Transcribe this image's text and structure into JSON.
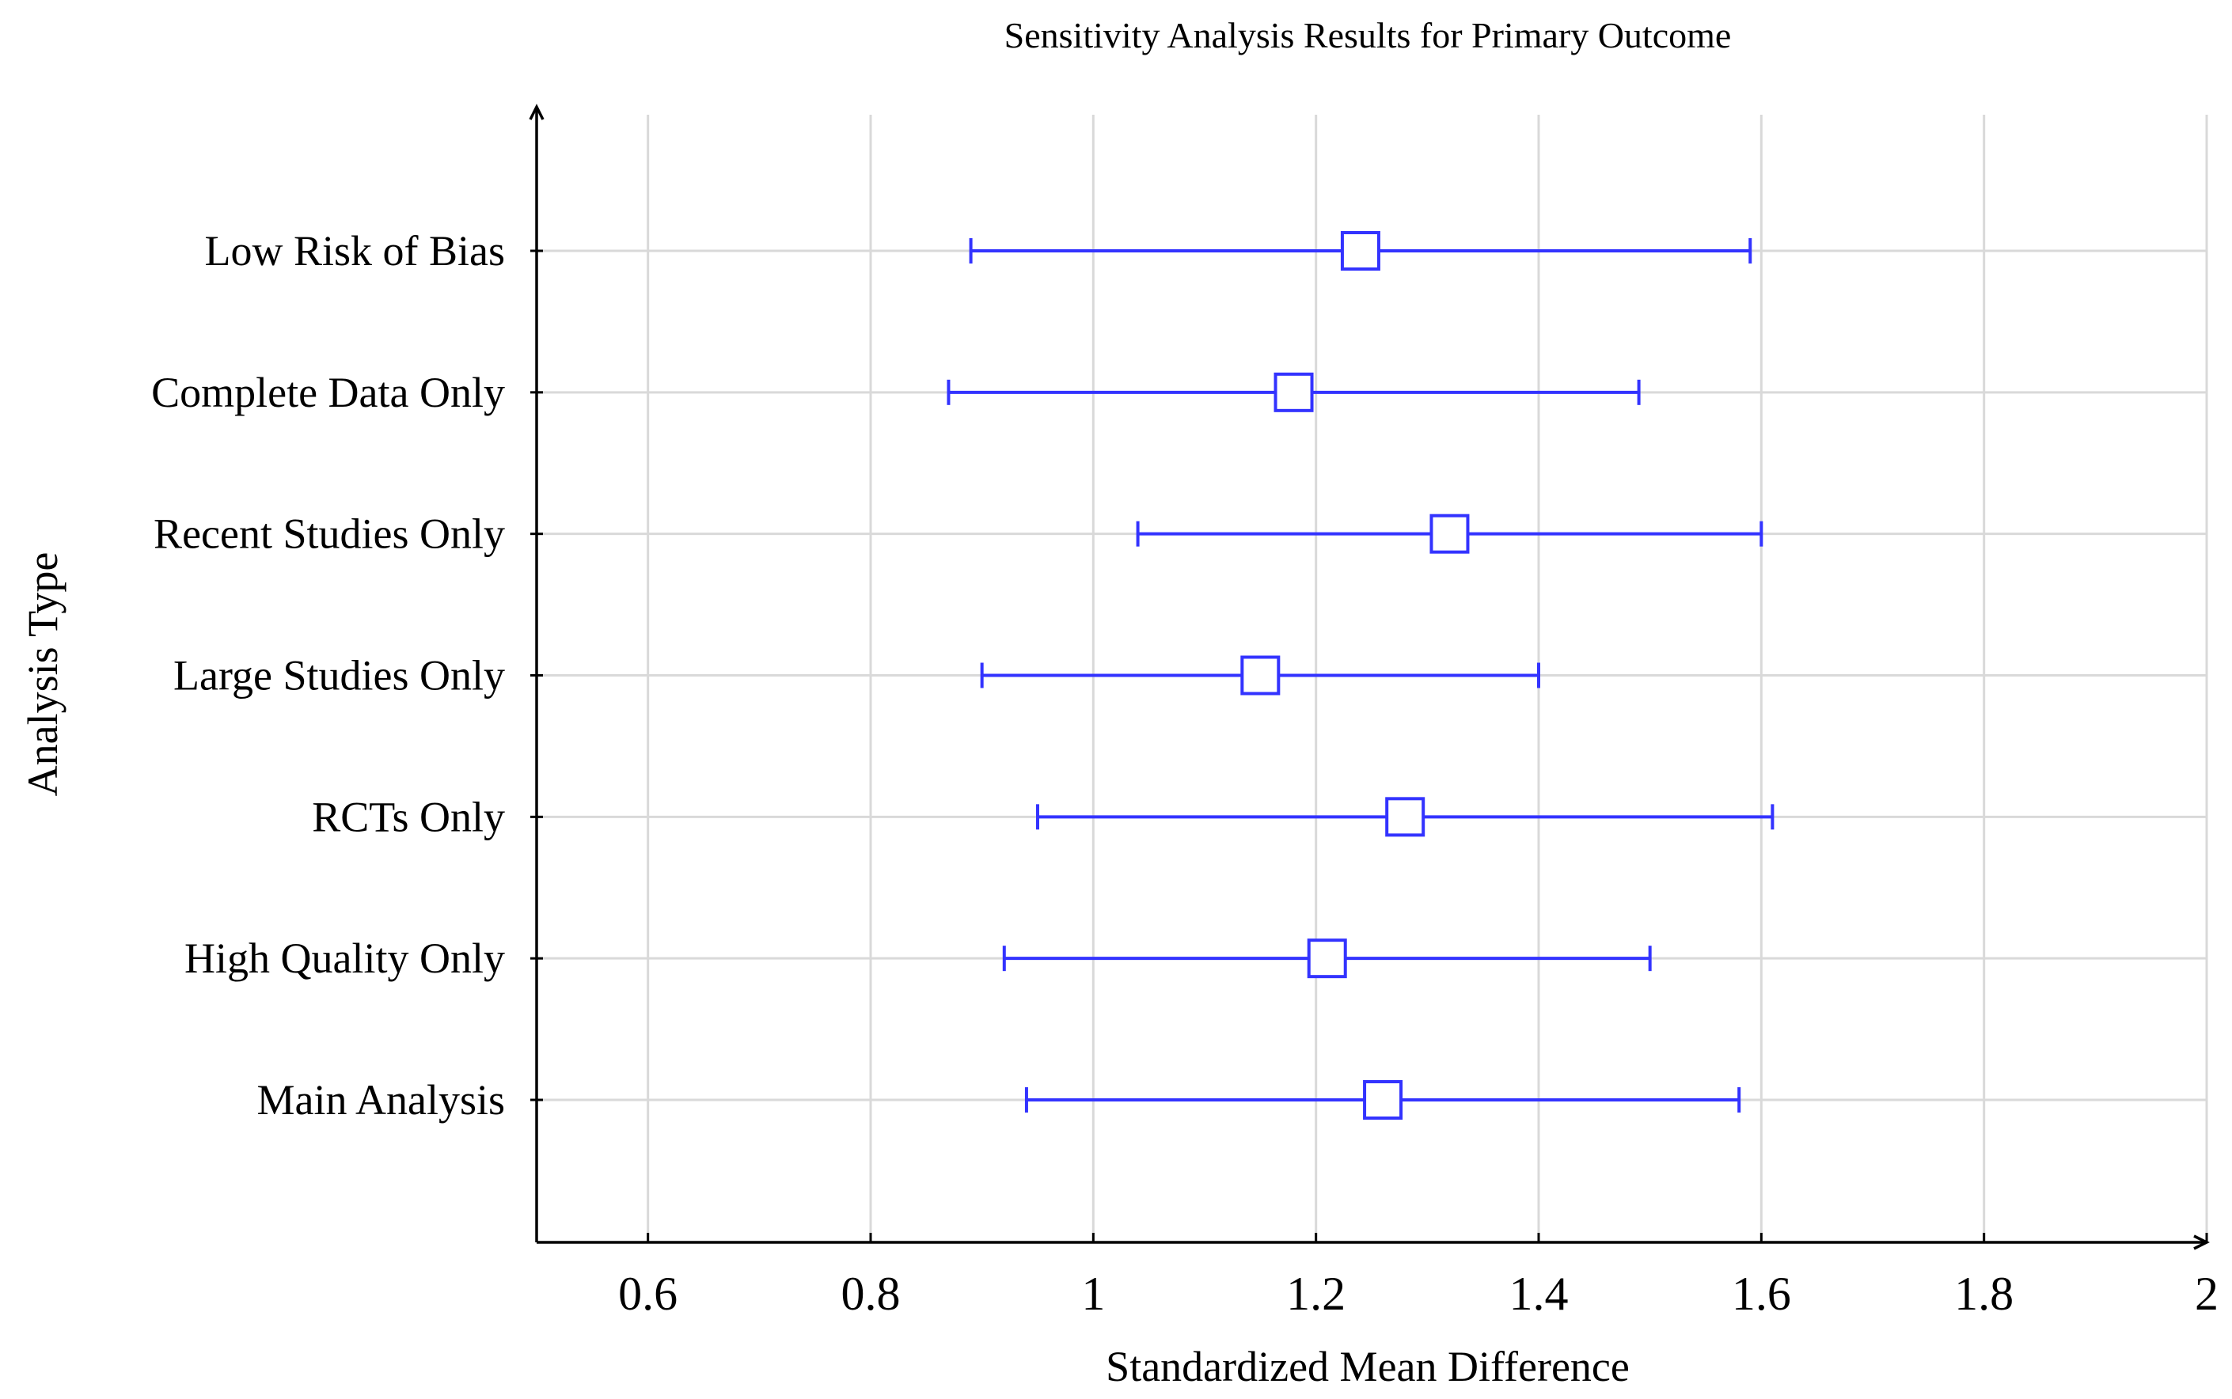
{
  "chart_data": {
    "type": "forest",
    "title": "Sensitivity Analysis Results for Primary Outcome",
    "xlabel": "Standardized Mean Difference",
    "ylabel": "Analysis Type",
    "xlim": [
      0.5,
      2.0
    ],
    "xticks": [
      0.6,
      0.8,
      1.0,
      1.2,
      1.4,
      1.6,
      1.8,
      2.0
    ],
    "xtick_labels": [
      "0.6",
      "0.8",
      "1",
      "1.2",
      "1.4",
      "1.6",
      "1.8",
      "2"
    ],
    "grid": true,
    "marker": "square",
    "color": "#3333ff",
    "categories": [
      "Main Analysis",
      "High Quality Only",
      "RCTs Only",
      "Large Studies Only",
      "Recent Studies Only",
      "Complete Data Only",
      "Low Risk of Bias"
    ],
    "estimates": [
      1.26,
      1.21,
      1.28,
      1.15,
      1.32,
      1.18,
      1.24
    ],
    "ci_lower": [
      0.94,
      0.92,
      0.95,
      0.9,
      1.04,
      0.87,
      0.89
    ],
    "ci_upper": [
      1.58,
      1.5,
      1.61,
      1.4,
      1.6,
      1.49,
      1.59
    ]
  }
}
